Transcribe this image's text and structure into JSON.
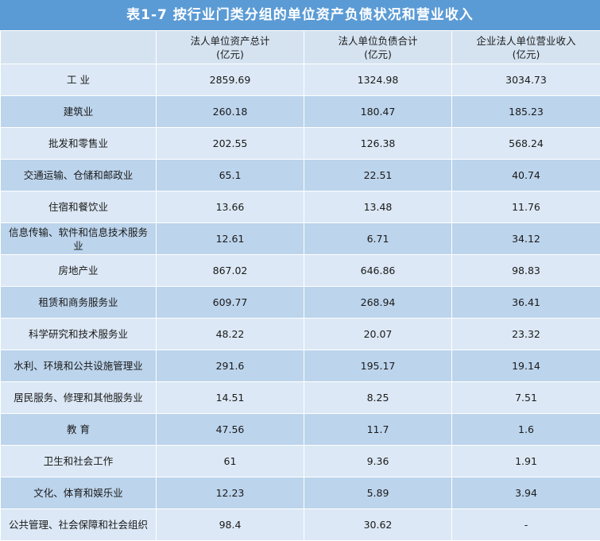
{
  "title": "表1-7   按行业门类分组的单位资产负债状况和营业收入",
  "chart_data": {
    "type": "table",
    "title": "表1-7   按行业门类分组的单位资产负债状况和营业收入",
    "columns": [
      {
        "label": "",
        "unit": ""
      },
      {
        "label": "法人单位资产总计",
        "unit": "(亿元)"
      },
      {
        "label": "法人单位负债合计",
        "unit": "(亿元)"
      },
      {
        "label": "企业法人单位营业收入",
        "unit": "(亿元)"
      }
    ],
    "rows": [
      [
        "工  业",
        "2859.69",
        "1324.98",
        "3034.73"
      ],
      [
        "建筑业",
        "260.18",
        "180.47",
        "185.23"
      ],
      [
        "批发和零售业",
        "202.55",
        "126.38",
        "568.24"
      ],
      [
        "交通运输、仓储和邮政业",
        "65.1",
        "22.51",
        "40.74"
      ],
      [
        "住宿和餐饮业",
        "13.66",
        "13.48",
        "11.76"
      ],
      [
        "信息传输、软件和信息技术服务业",
        "12.61",
        "6.71",
        "34.12"
      ],
      [
        "房地产业",
        "867.02",
        "646.86",
        "98.83"
      ],
      [
        "租赁和商务服务业",
        "609.77",
        "268.94",
        "36.41"
      ],
      [
        "科学研究和技术服务业",
        "48.22",
        "20.07",
        "23.32"
      ],
      [
        "水利、环境和公共设施管理业",
        "291.6",
        "195.17",
        "19.14"
      ],
      [
        "居民服务、修理和其他服务业",
        "14.51",
        "8.25",
        "7.51"
      ],
      [
        "教  育",
        "47.56",
        "11.7",
        "1.6"
      ],
      [
        "卫生和社会工作",
        "61",
        "9.36",
        "1.91"
      ],
      [
        "文化、体育和娱乐业",
        "12.23",
        "5.89",
        "3.94"
      ],
      [
        "公共管理、社会保障和社会组织",
        "98.4",
        "30.62",
        "-"
      ]
    ]
  }
}
